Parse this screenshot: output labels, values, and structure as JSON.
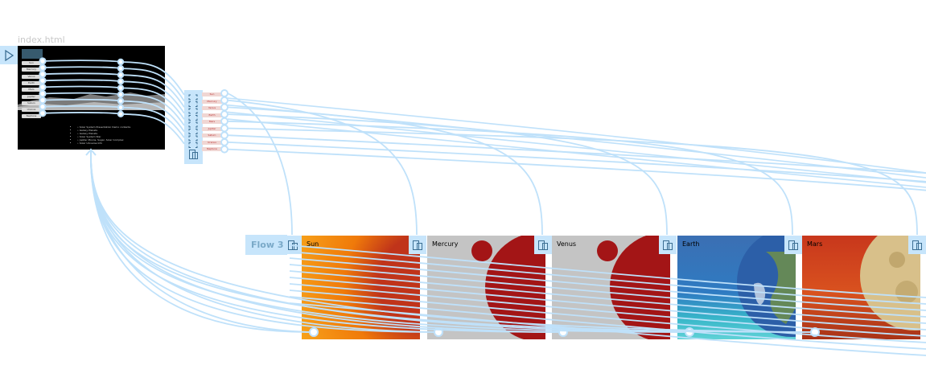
{
  "file": {
    "name": "index.html"
  },
  "index_menu": [
    "Sun",
    "Mercury",
    "Venus",
    "Earth",
    "Mars",
    "Jupiter",
    "Saturn",
    "Uranus",
    "Neptune"
  ],
  "index_list": [
    "• Solar System Presentation Demo contents",
    "• Galaxy Planets",
    "• Galaxy Planets",
    "• Solar System Star",
    "• Jupiter Moons, Sugar, Solar Complex",
    "• Solar Universe Info"
  ],
  "menu_panel": [
    "Sun",
    "Mercury",
    "Venus",
    "Earth",
    "Mars",
    "Jupiter",
    "Saturn",
    "Uranus",
    "Neptune"
  ],
  "flow": {
    "label": "Flow 3"
  },
  "slides": [
    {
      "title": "Sun"
    },
    {
      "title": "Mercury"
    },
    {
      "title": "Venus"
    },
    {
      "title": "Earth"
    },
    {
      "title": "Mars"
    }
  ],
  "colors": {
    "wire": "#bfe1fa",
    "accent": "#c7e5fb",
    "planet_red": "#a31516",
    "slide_gray": "#c4c4c4"
  }
}
